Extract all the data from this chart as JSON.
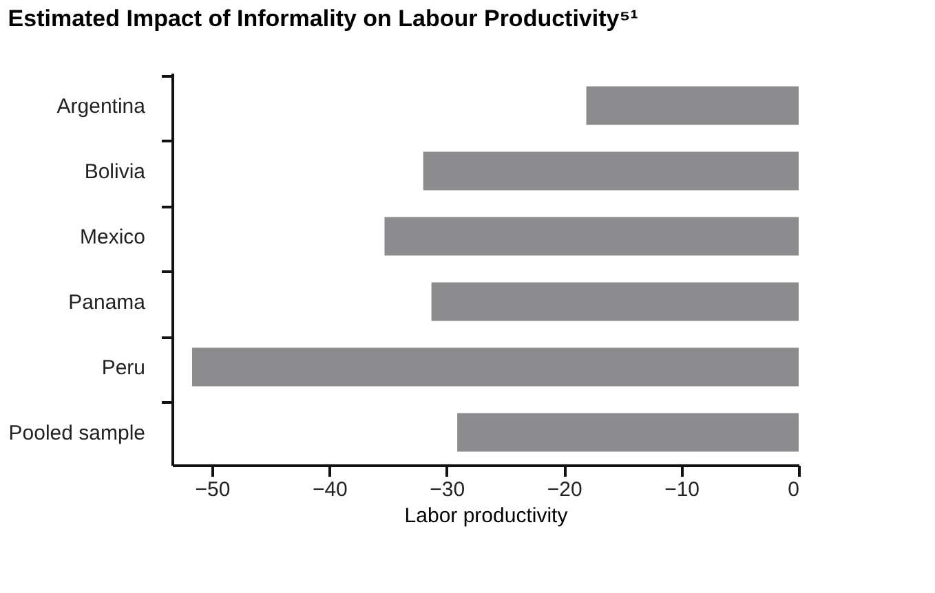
{
  "chart_data": {
    "type": "bar",
    "orientation": "horizontal",
    "title": "Estimated Impact of Informality on Labour Productivity⁵¹",
    "xlabel": "Labor productivity",
    "categories": [
      "Argentina",
      "Bolivia",
      "Mexico",
      "Panama",
      "Peru",
      "Pooled sample"
    ],
    "values": [
      -18.1,
      -32.0,
      -35.3,
      -31.3,
      -51.7,
      -29.1
    ],
    "color": "#8c8c8f",
    "xlim": [
      -53.4,
      0
    ],
    "xticks": [
      -50,
      -40,
      -30,
      -20,
      -10,
      0
    ],
    "grid": false
  }
}
